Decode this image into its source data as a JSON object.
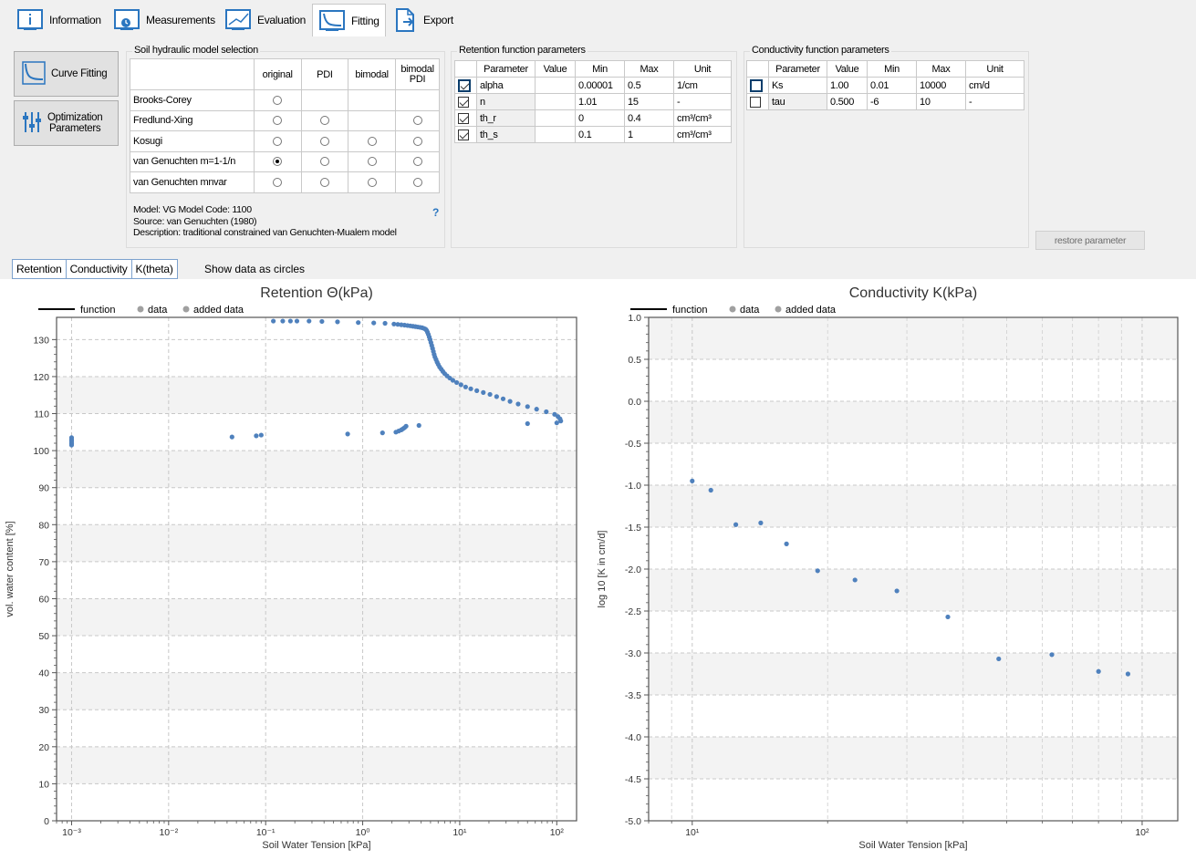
{
  "tabs": [
    {
      "label": "Information",
      "icon": "info-icon"
    },
    {
      "label": "Measurements",
      "icon": "measurements-icon"
    },
    {
      "label": "Evaluation",
      "icon": "evaluation-icon"
    },
    {
      "label": "Fitting",
      "icon": "fitting-icon",
      "active": true
    },
    {
      "label": "Export",
      "icon": "export-icon"
    }
  ],
  "buttons": {
    "curve_fitting": "Curve Fitting",
    "optimization_line1": "Optimization",
    "optimization_line2": "Parameters",
    "restore": "restore parameter"
  },
  "model_selection": {
    "title": "Soil hydraulic model selection",
    "columns": [
      "original",
      "PDI",
      "bimodal",
      "bimodal PDI"
    ],
    "rows": [
      {
        "name": "Brooks-Corey",
        "options": [
          true,
          false,
          false,
          false
        ],
        "selected": -1
      },
      {
        "name": "Fredlund-Xing",
        "options": [
          true,
          true,
          false,
          true
        ],
        "selected": -1
      },
      {
        "name": "Kosugi",
        "options": [
          true,
          true,
          true,
          true
        ],
        "selected": -1
      },
      {
        "name": "van Genuchten m=1-1/n",
        "options": [
          true,
          true,
          true,
          true
        ],
        "selected": 0
      },
      {
        "name": "van Genuchten mnvar",
        "options": [
          true,
          true,
          true,
          true
        ],
        "selected": -1
      }
    ],
    "model_info": "Model: VG  Model Code: 1100",
    "source": "Source: van Genuchten (1980)",
    "description": "Description: traditional constrained van Genuchten-Mualem model",
    "help": "?"
  },
  "retention": {
    "title": "Retention function parameters",
    "headers": [
      "Parameter",
      "Value",
      "Min",
      "Max",
      "Unit"
    ],
    "rows": [
      {
        "checked": true,
        "param": "alpha",
        "value": "",
        "min": "0.00001",
        "max": "0.5",
        "unit": "1/cm",
        "selected": true
      },
      {
        "checked": true,
        "param": "n",
        "value": "",
        "min": "1.01",
        "max": "15",
        "unit": "-"
      },
      {
        "checked": true,
        "param": "th_r",
        "value": "",
        "min": "0",
        "max": "0.4",
        "unit": "cm³/cm³"
      },
      {
        "checked": true,
        "param": "th_s",
        "value": "",
        "min": "0.1",
        "max": "1",
        "unit": "cm³/cm³"
      }
    ]
  },
  "conductivity": {
    "title": "Conductivity function parameters",
    "headers": [
      "Parameter",
      "Value",
      "Min",
      "Max",
      "Unit"
    ],
    "rows": [
      {
        "checked": false,
        "param": "Ks",
        "value": "1.00",
        "min": "0.01",
        "max": "10000",
        "unit": "cm/d",
        "selected": true
      },
      {
        "checked": false,
        "param": "tau",
        "value": "0.500",
        "min": "-6",
        "max": "10",
        "unit": "-"
      }
    ]
  },
  "subtabs": [
    "Retention",
    "Conductivity",
    "K(theta)"
  ],
  "show_circles": "Show data as circles",
  "colors": {
    "point": "#4f81bd",
    "line": "#000000",
    "legend_dot": "#a0a0a0"
  },
  "chart_data": [
    {
      "type": "scatter",
      "title": "Retention Θ(kPa)",
      "xlabel": "Soil Water Tension [kPa]",
      "ylabel": "vol. water content [%]",
      "xscale": "log",
      "xlim": [
        0.0007,
        160
      ],
      "ylim": [
        0,
        136
      ],
      "xticklabels": [
        "10⁻³",
        "10⁻²",
        "10⁻¹",
        "10⁰",
        "10¹",
        "10²"
      ],
      "yticks": [
        0,
        10,
        20,
        30,
        40,
        50,
        60,
        70,
        80,
        90,
        100,
        110,
        120,
        130
      ],
      "legend": [
        "function",
        "data",
        "added data"
      ],
      "legend_position": "top-left",
      "grid": true,
      "series": [
        {
          "name": "data",
          "points": [
            [
              0.001,
              101.5
            ],
            [
              0.001,
              102
            ],
            [
              0.001,
              102.5
            ],
            [
              0.001,
              103
            ],
            [
              0.001,
              103.5
            ],
            [
              0.001,
              101.8
            ],
            [
              0.001,
              102.8
            ],
            [
              0.045,
              103.7
            ],
            [
              0.08,
              104
            ],
            [
              0.09,
              104.2
            ],
            [
              0.7,
              104.5
            ],
            [
              1.6,
              104.8
            ],
            [
              2.2,
              105
            ],
            [
              2.35,
              105.3
            ],
            [
              2.5,
              105.6
            ],
            [
              2.6,
              105.9
            ],
            [
              2.7,
              106.2
            ],
            [
              2.8,
              106.6
            ],
            [
              3.8,
              106.8
            ],
            [
              50,
              107.3
            ],
            [
              100,
              107.5
            ],
            [
              110,
              108
            ],
            [
              0.12,
              135
            ],
            [
              0.15,
              135
            ],
            [
              0.18,
              135
            ],
            [
              0.21,
              135
            ],
            [
              0.28,
              135
            ],
            [
              0.38,
              134.9
            ],
            [
              0.55,
              134.8
            ],
            [
              0.9,
              134.6
            ],
            [
              1.3,
              134.5
            ],
            [
              1.7,
              134.4
            ],
            [
              2.1,
              134.2
            ],
            [
              2.3,
              134.1
            ],
            [
              2.5,
              134
            ],
            [
              2.7,
              133.9
            ],
            [
              2.9,
              133.8
            ],
            [
              3.1,
              133.7
            ],
            [
              3.3,
              133.6
            ],
            [
              3.5,
              133.5
            ],
            [
              3.7,
              133.4
            ],
            [
              3.9,
              133.3
            ],
            [
              4.1,
              133.2
            ],
            [
              4.3,
              133
            ],
            [
              4.45,
              132.8
            ],
            [
              4.55,
              132.5
            ],
            [
              4.65,
              132
            ],
            [
              4.75,
              131.4
            ],
            [
              4.85,
              130.7
            ],
            [
              4.95,
              130
            ],
            [
              5.05,
              129.2
            ],
            [
              5.15,
              128.4
            ],
            [
              5.25,
              127.6
            ],
            [
              5.35,
              126.8
            ],
            [
              5.45,
              126
            ],
            [
              5.55,
              125.3
            ],
            [
              5.7,
              124.6
            ],
            [
              5.85,
              123.9
            ],
            [
              6.0,
              123.3
            ],
            [
              6.2,
              122.6
            ],
            [
              6.45,
              122
            ],
            [
              6.7,
              121.4
            ],
            [
              7.0,
              120.8
            ],
            [
              7.4,
              120.2
            ],
            [
              7.9,
              119.6
            ],
            [
              8.5,
              119
            ],
            [
              9.3,
              118.4
            ],
            [
              10.3,
              117.8
            ],
            [
              11.5,
              117.2
            ],
            [
              13,
              116.7
            ],
            [
              15,
              116.2
            ],
            [
              17.5,
              115.7
            ],
            [
              20.5,
              115.2
            ],
            [
              24,
              114.6
            ],
            [
              28,
              114
            ],
            [
              33,
              113.3
            ],
            [
              40,
              112.6
            ],
            [
              50,
              111.9
            ],
            [
              62,
              111.2
            ],
            [
              78,
              110.5
            ],
            [
              95,
              109.8
            ],
            [
              103,
              109.2
            ],
            [
              108,
              108.6
            ]
          ]
        },
        {
          "name": "added data",
          "points": []
        },
        {
          "name": "function",
          "points": []
        }
      ]
    },
    {
      "type": "scatter",
      "title": "Conductivity K(kPa)",
      "xlabel": "Soil Water Tension [kPa]",
      "ylabel": "log 10 [K in cm/d]",
      "xscale": "log",
      "xlim": [
        8,
        120
      ],
      "ylim": [
        -5.0,
        1.0
      ],
      "xticklabels": [
        "10¹",
        "10²"
      ],
      "yticks": [
        1.0,
        0.5,
        0.0,
        -0.5,
        -1.0,
        -1.5,
        -2.0,
        -2.5,
        -3.0,
        -3.5,
        -4.0,
        -4.5,
        -5.0
      ],
      "yticklabels": [
        "1.0",
        "0.5",
        "0.0",
        "-0.5",
        "-1.0",
        "-1.5",
        "-2.0",
        "-2.5",
        "-3.0",
        "-3.5",
        "-4.0",
        "-4.5",
        "-5.0"
      ],
      "legend": [
        "function",
        "data",
        "added data"
      ],
      "legend_position": "top-left",
      "grid": true,
      "series": [
        {
          "name": "data",
          "points": [
            [
              10,
              -0.95
            ],
            [
              11,
              -1.06
            ],
            [
              12.5,
              -1.47
            ],
            [
              14.2,
              -1.45
            ],
            [
              16.2,
              -1.7
            ],
            [
              19,
              -2.02
            ],
            [
              23,
              -2.13
            ],
            [
              28.5,
              -2.26
            ],
            [
              37,
              -2.57
            ],
            [
              48,
              -3.07
            ],
            [
              63,
              -3.02
            ],
            [
              80,
              -3.22
            ],
            [
              93,
              -3.25
            ]
          ]
        },
        {
          "name": "added data",
          "points": []
        },
        {
          "name": "function",
          "points": []
        }
      ]
    }
  ]
}
